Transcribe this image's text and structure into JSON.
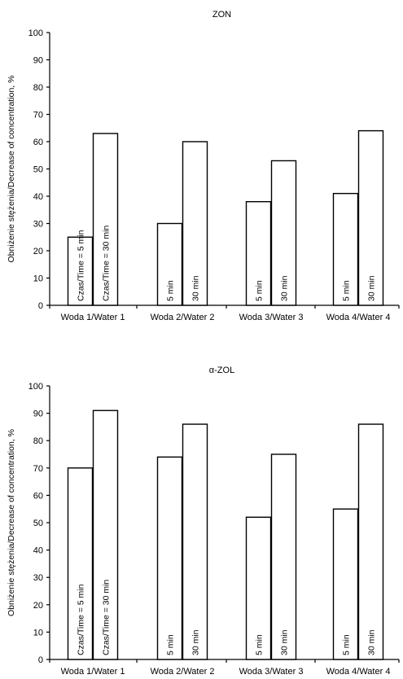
{
  "chart_data": [
    {
      "type": "bar",
      "title": "ZON",
      "ylabel": "Obniżenie stężenia/Decrease of concentration, %",
      "xlabel": "",
      "ylim": [
        0,
        100
      ],
      "yticks": [
        0,
        10,
        20,
        30,
        40,
        50,
        60,
        70,
        80,
        90,
        100
      ],
      "grid": false,
      "categories": [
        "Woda 1/Water 1",
        "Woda 2/Water 2",
        "Woda 3/Water 3",
        "Woda 4/Water 4"
      ],
      "series": [
        {
          "values": [
            25,
            30,
            38,
            41
          ],
          "labels": [
            "Czas/Time = 5 min",
            "5 min",
            "5 min",
            "5 min"
          ]
        },
        {
          "values": [
            63,
            60,
            53,
            64
          ],
          "labels": [
            "Czas/Time = 30 min",
            "30 min",
            "30 min",
            "30 min"
          ]
        }
      ]
    },
    {
      "type": "bar",
      "title": "α-ZOL",
      "ylabel": "Obniżenie stężenia/Decrease of concentration, %",
      "xlabel": "",
      "ylim": [
        0,
        100
      ],
      "yticks": [
        0,
        10,
        20,
        30,
        40,
        50,
        60,
        70,
        80,
        90,
        100
      ],
      "grid": false,
      "categories": [
        "Woda 1/Water 1",
        "Woda 2/Water 2",
        "Woda 3/Water 3",
        "Woda 4/Water 4"
      ],
      "series": [
        {
          "values": [
            70,
            74,
            52,
            55
          ],
          "labels": [
            "Czas/Time = 5 min",
            "5 min",
            "5 min",
            "5 min"
          ]
        },
        {
          "values": [
            91,
            86,
            75,
            86
          ],
          "labels": [
            "Czas/Time = 30 min",
            "30 min",
            "30 min",
            "30 min"
          ]
        }
      ]
    }
  ]
}
